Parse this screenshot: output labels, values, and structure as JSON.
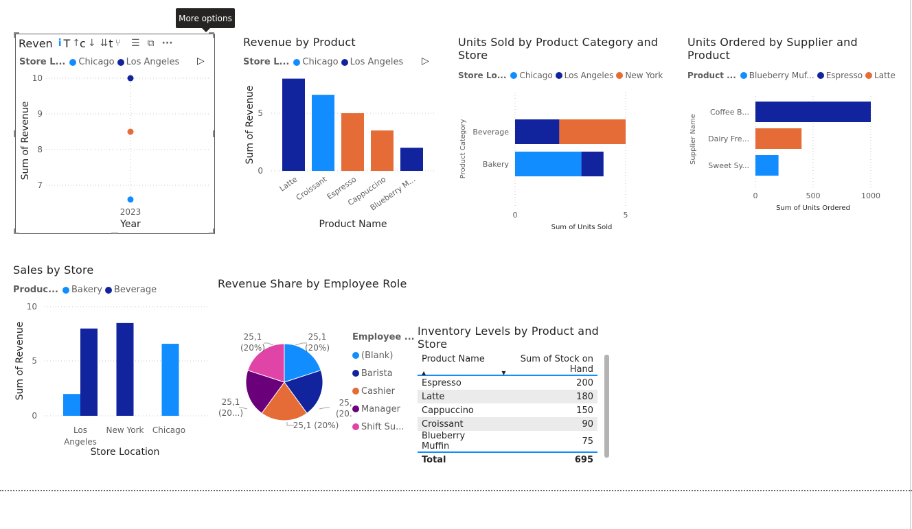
{
  "tooltip": "More options",
  "visual1": {
    "title": "Reven",
    "title_partial": "T",
    "title_partial2": "c",
    "title_partial3": "t",
    "legend_title": "Store L...",
    "legend": [
      {
        "name": "Chicago",
        "color": "#118DFF"
      },
      {
        "name": "Los Angeles",
        "color": "#12239E"
      }
    ],
    "toolbar_icons": [
      "info-icon",
      "drill-up-icon",
      "drill-down-icon",
      "expand-all-icon",
      "expand-hierarchy-icon",
      "filter-icon",
      "focus-mode-icon",
      "more-options-icon"
    ]
  },
  "chart_data": [
    {
      "type": "scatter",
      "title": "Reven",
      "xlabel": "Year",
      "ylabel": "Sum of Revenue",
      "categories": [
        "2023"
      ],
      "yticks": [
        "10",
        "9",
        "8",
        "7"
      ],
      "ylim": [
        6.5,
        10
      ],
      "points": [
        {
          "x": "2023",
          "y": 10.0,
          "color": "#12239E"
        },
        {
          "x": "2023",
          "y": 8.5,
          "color": "#E66C37"
        },
        {
          "x": "2023",
          "y": 6.6,
          "color": "#118DFF"
        }
      ]
    },
    {
      "type": "bar",
      "title": "Revenue by Product",
      "xlabel": "Product Name",
      "ylabel": "Sum of Revenue",
      "categories": [
        "Latte",
        "Croissant",
        "Espresso",
        "Cappuccino",
        "Blueberry M..."
      ],
      "values": [
        8,
        6.6,
        5,
        3.5,
        2
      ],
      "colors": [
        "#12239E",
        "#118DFF",
        "#E66C37",
        "#E66C37",
        "#12239E"
      ],
      "yticks": [
        "0",
        "5"
      ],
      "ylim": [
        0,
        8.5
      ],
      "legend_title": "Store L...",
      "legend": [
        {
          "name": "Chicago",
          "color": "#118DFF"
        },
        {
          "name": "Los Angeles",
          "color": "#12239E"
        }
      ]
    },
    {
      "type": "bar",
      "title": "Units Sold by Product Category and Store",
      "orientation": "horizontal-stacked",
      "xlabel": "Sum of Units Sold",
      "ylabel": "Product Category",
      "categories": [
        "Beverage",
        "Bakery"
      ],
      "series": [
        {
          "name": "Chicago",
          "values": [
            0,
            3
          ],
          "color": "#118DFF"
        },
        {
          "name": "Los Angeles",
          "values": [
            2,
            1
          ],
          "color": "#12239E"
        },
        {
          "name": "New York",
          "values": [
            3,
            0
          ],
          "color": "#E66C37"
        }
      ],
      "xticks": [
        "0",
        "5"
      ],
      "xlim": [
        0,
        5
      ],
      "legend_title": "Store Lo...",
      "legend": [
        {
          "name": "Chicago",
          "color": "#118DFF"
        },
        {
          "name": "Los Angeles",
          "color": "#12239E"
        },
        {
          "name": "New York",
          "color": "#E66C37"
        }
      ]
    },
    {
      "type": "bar",
      "title": "Units Ordered by Supplier and Product",
      "orientation": "horizontal",
      "xlabel": "Sum of Units Ordered",
      "ylabel": "Supplier Name",
      "categories": [
        "Coffee B...",
        "Dairy Fre...",
        "Sweet Sy..."
      ],
      "values": [
        1000,
        400,
        200
      ],
      "colors": [
        "#12239E",
        "#E66C37",
        "#118DFF"
      ],
      "xticks": [
        "0",
        "500",
        "1000"
      ],
      "xlim": [
        0,
        1000
      ],
      "legend_title": "Product ...",
      "legend": [
        {
          "name": "Blueberry Muf...",
          "color": "#118DFF"
        },
        {
          "name": "Espresso",
          "color": "#12239E"
        },
        {
          "name": "Latte",
          "color": "#E66C37"
        }
      ]
    },
    {
      "type": "bar",
      "title": "Sales by Store",
      "xlabel": "Store Location",
      "ylabel": "Sum of Revenue",
      "categories": [
        "Los Angeles",
        "New York",
        "Chicago"
      ],
      "series": [
        {
          "name": "Bakery",
          "values": [
            2,
            0,
            6.6
          ],
          "color": "#118DFF"
        },
        {
          "name": "Beverage",
          "values": [
            8,
            8.5,
            0
          ],
          "color": "#12239E"
        }
      ],
      "yticks": [
        "0",
        "5",
        "10"
      ],
      "ylim": [
        0,
        10
      ],
      "legend_title": "Produc...",
      "legend": [
        {
          "name": "Bakery",
          "color": "#118DFF"
        },
        {
          "name": "Beverage",
          "color": "#12239E"
        }
      ]
    },
    {
      "type": "pie",
      "title": "Revenue Share by Employee Role",
      "legend_title": "Employee ...",
      "slices": [
        {
          "name": "(Blank)",
          "value": 20,
          "color": "#118DFF",
          "label": [
            "25,1",
            "(20%)"
          ]
        },
        {
          "name": "Barista",
          "value": 20,
          "color": "#12239E",
          "label": [
            "25,1",
            "(20...)"
          ]
        },
        {
          "name": "Cashier",
          "value": 20,
          "color": "#E66C37",
          "label": [
            "25,1 (20%)"
          ]
        },
        {
          "name": "Manager",
          "value": 20,
          "color": "#6B007B",
          "label": [
            "25,1",
            "(20...)"
          ]
        },
        {
          "name": "Shift Su...",
          "value": 20,
          "color": "#E044A7",
          "label": [
            "25,1",
            "(20%)"
          ]
        }
      ]
    }
  ],
  "inventory": {
    "title_line1": "Inventory Levels by Product and",
    "title_line2": "Store",
    "col_product": "Product Name",
    "col_stock": "Sum of Stock on Hand",
    "rows": [
      {
        "product": "Espresso",
        "stock": "200"
      },
      {
        "product": "Latte",
        "stock": "180"
      },
      {
        "product": "Cappuccino",
        "stock": "150"
      },
      {
        "product": "Croissant",
        "stock": "90"
      },
      {
        "product": "Blueberry Muffin",
        "stock": "75"
      }
    ],
    "total_label": "Total",
    "total_value": "695"
  },
  "titles": {
    "units_sold_line1": "Units Sold by Product Category and",
    "units_sold_line2": "Store",
    "units_ordered_line1": "Units Ordered by Supplier and",
    "units_ordered_line2": "Product"
  }
}
